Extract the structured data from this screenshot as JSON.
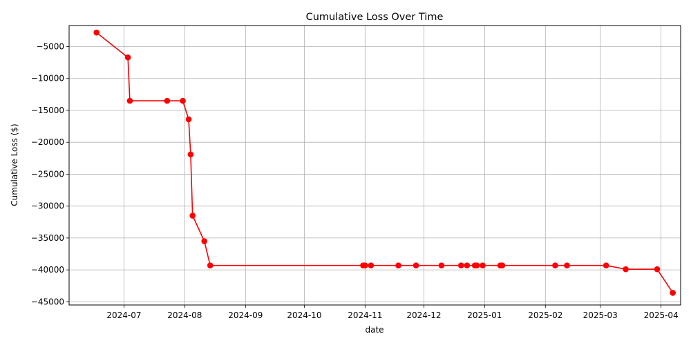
{
  "chart_data": {
    "type": "line",
    "title": "Cumulative Loss Over Time",
    "xlabel": "date",
    "ylabel": "Cumulative Loss ($)",
    "grid": true,
    "x_range": [
      "2024-06-03",
      "2025-04-11"
    ],
    "ylim": [
      -45500,
      -1700
    ],
    "x_ticks": [
      {
        "date": "2024-07-01",
        "label": "2024-07"
      },
      {
        "date": "2024-08-01",
        "label": "2024-08"
      },
      {
        "date": "2024-09-01",
        "label": "2024-09"
      },
      {
        "date": "2024-10-01",
        "label": "2024-10"
      },
      {
        "date": "2024-11-01",
        "label": "2024-11"
      },
      {
        "date": "2024-12-01",
        "label": "2024-12"
      },
      {
        "date": "2025-01-01",
        "label": "2025-01"
      },
      {
        "date": "2025-02-01",
        "label": "2025-02"
      },
      {
        "date": "2025-03-01",
        "label": "2025-03"
      },
      {
        "date": "2025-04-01",
        "label": "2025-04"
      }
    ],
    "y_ticks": [
      {
        "value": -5000,
        "label": "−5000"
      },
      {
        "value": -10000,
        "label": "−10000"
      },
      {
        "value": -15000,
        "label": "−15000"
      },
      {
        "value": -20000,
        "label": "−20000"
      },
      {
        "value": -25000,
        "label": "−25000"
      },
      {
        "value": -30000,
        "label": "−30000"
      },
      {
        "value": -35000,
        "label": "−35000"
      },
      {
        "value": -40000,
        "label": "−40000"
      },
      {
        "value": -45000,
        "label": "−45000"
      }
    ],
    "series": [
      {
        "color": "#ff0000",
        "marker": "circle",
        "points": [
          {
            "x": "2024-06-17",
            "y": -2800
          },
          {
            "x": "2024-07-03",
            "y": -6700
          },
          {
            "x": "2024-07-04",
            "y": -13500
          },
          {
            "x": "2024-07-23",
            "y": -13500
          },
          {
            "x": "2024-07-31",
            "y": -13500
          },
          {
            "x": "2024-08-03",
            "y": -16400
          },
          {
            "x": "2024-08-04",
            "y": -21900
          },
          {
            "x": "2024-08-05",
            "y": -31500
          },
          {
            "x": "2024-08-11",
            "y": -35500
          },
          {
            "x": "2024-08-14",
            "y": -39300
          },
          {
            "x": "2024-10-31",
            "y": -39300
          },
          {
            "x": "2024-11-01",
            "y": -39300
          },
          {
            "x": "2024-11-04",
            "y": -39300
          },
          {
            "x": "2024-11-18",
            "y": -39300
          },
          {
            "x": "2024-11-27",
            "y": -39300
          },
          {
            "x": "2024-12-10",
            "y": -39300
          },
          {
            "x": "2024-12-20",
            "y": -39300
          },
          {
            "x": "2024-12-23",
            "y": -39300
          },
          {
            "x": "2024-12-27",
            "y": -39300
          },
          {
            "x": "2024-12-28",
            "y": -39300
          },
          {
            "x": "2024-12-31",
            "y": -39300
          },
          {
            "x": "2025-01-09",
            "y": -39300
          },
          {
            "x": "2025-01-10",
            "y": -39300
          },
          {
            "x": "2025-02-06",
            "y": -39300
          },
          {
            "x": "2025-02-12",
            "y": -39300
          },
          {
            "x": "2025-03-04",
            "y": -39300
          },
          {
            "x": "2025-03-14",
            "y": -39900
          },
          {
            "x": "2025-03-30",
            "y": -39900
          },
          {
            "x": "2025-04-07",
            "y": -43600
          }
        ]
      }
    ]
  }
}
